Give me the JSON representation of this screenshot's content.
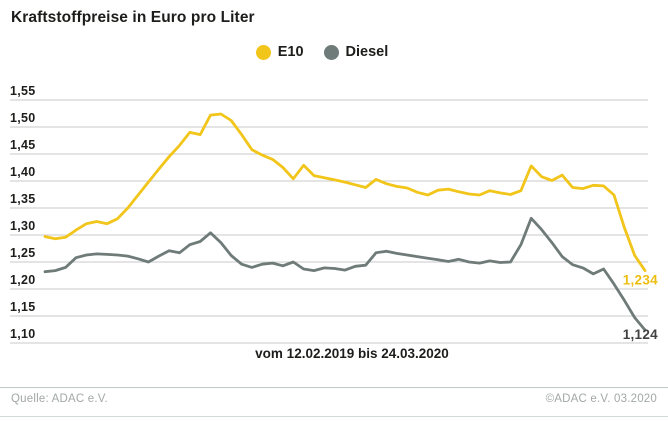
{
  "title": "Kraftstoffpreise in Euro pro Liter",
  "legend": {
    "items": [
      {
        "label": "E10",
        "color": "#f2c51a"
      },
      {
        "label": "Diesel",
        "color": "#6e7b78"
      }
    ]
  },
  "caption": "vom 12.02.2019 bis 24.03.2020",
  "footer": {
    "source": "Quelle: ADAC e.V.",
    "copyright": "©ADAC e.V.  03.2020"
  },
  "colors": {
    "grid": "#c9c9c9",
    "text": "#1d1d1b",
    "footer_text": "#a2a8a5",
    "separator": "#bfcac4"
  },
  "chart_data": {
    "type": "line",
    "title": "Kraftstoffpreise in Euro pro Liter",
    "xlabel": "vom 12.02.2019 bis 24.03.2020",
    "ylabel": "Euro pro Liter",
    "ylim": [
      1.1,
      1.55
    ],
    "grid": true,
    "legend_position": "top-center",
    "x_range": {
      "from": "12.02.2019",
      "to": "24.03.2020"
    },
    "ytick_values": [
      1.55,
      1.5,
      1.45,
      1.4,
      1.35,
      1.3,
      1.25,
      1.2,
      1.15,
      1.1
    ],
    "ytick_labels": [
      "1,55",
      "1,50",
      "1,45",
      "1,40",
      "1,35",
      "1,30",
      "1,25",
      "1,20",
      "1,15",
      "1,10"
    ],
    "series": [
      {
        "name": "E10",
        "color": "#f2c51a",
        "end_value": 1.234,
        "end_label": "1,234",
        "end_label_color": "#edbe12",
        "values": [
          1.297,
          1.293,
          1.296,
          1.309,
          1.321,
          1.325,
          1.321,
          1.33,
          1.35,
          1.374,
          1.398,
          1.422,
          1.445,
          1.466,
          1.49,
          1.486,
          1.522,
          1.524,
          1.512,
          1.486,
          1.458,
          1.448,
          1.44,
          1.425,
          1.404,
          1.429,
          1.41,
          1.406,
          1.402,
          1.398,
          1.393,
          1.388,
          1.403,
          1.395,
          1.39,
          1.387,
          1.379,
          1.374,
          1.383,
          1.385,
          1.38,
          1.376,
          1.374,
          1.382,
          1.378,
          1.375,
          1.382,
          1.428,
          1.408,
          1.401,
          1.411,
          1.388,
          1.386,
          1.392,
          1.391,
          1.374,
          1.314,
          1.262,
          1.234
        ]
      },
      {
        "name": "Diesel",
        "color": "#6e7b78",
        "end_value": 1.124,
        "end_label": "1,124",
        "end_label_color": "#414141",
        "values": [
          1.232,
          1.234,
          1.24,
          1.258,
          1.263,
          1.265,
          1.264,
          1.263,
          1.261,
          1.256,
          1.25,
          1.261,
          1.271,
          1.267,
          1.282,
          1.288,
          1.304,
          1.286,
          1.262,
          1.246,
          1.24,
          1.246,
          1.248,
          1.243,
          1.25,
          1.237,
          1.234,
          1.239,
          1.238,
          1.235,
          1.242,
          1.244,
          1.267,
          1.27,
          1.266,
          1.263,
          1.26,
          1.257,
          1.254,
          1.251,
          1.255,
          1.25,
          1.248,
          1.252,
          1.249,
          1.25,
          1.282,
          1.331,
          1.31,
          1.286,
          1.26,
          1.245,
          1.239,
          1.228,
          1.237,
          1.209,
          1.179,
          1.147,
          1.124
        ]
      }
    ]
  }
}
